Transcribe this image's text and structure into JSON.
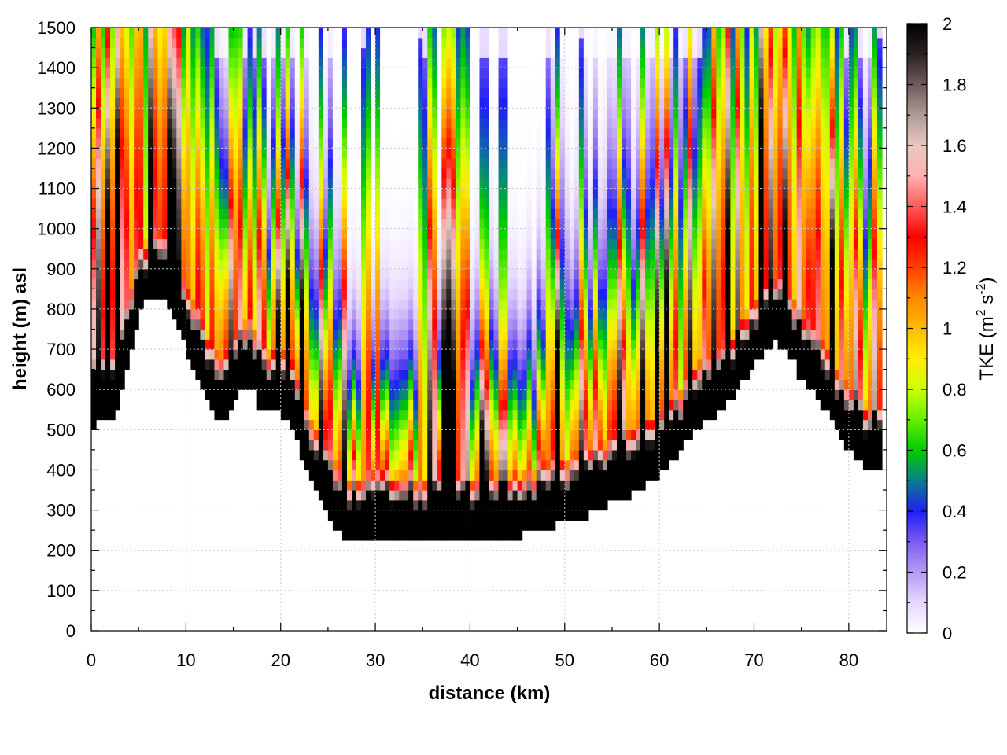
{
  "chart_data": {
    "type": "heatmap",
    "title": "",
    "xlabel": "distance (km)",
    "ylabel": "height (m) asl",
    "xlim": [
      0,
      84
    ],
    "ylim": [
      0,
      1500
    ],
    "x_ticks": [
      0,
      10,
      20,
      30,
      40,
      50,
      60,
      70,
      80
    ],
    "y_ticks": [
      0,
      100,
      200,
      300,
      400,
      500,
      600,
      700,
      800,
      900,
      1000,
      1100,
      1200,
      1300,
      1400,
      1500
    ],
    "grid": true,
    "colorbar": {
      "label_main": "TKE (m",
      "label_sup1": "2",
      "label_mid": " s",
      "label_sup2": "-2",
      "label_end": ")",
      "range": [
        0,
        2
      ],
      "ticks": [
        0,
        0.2,
        0.4,
        0.6,
        0.8,
        1,
        1.2,
        1.4,
        1.6,
        1.8,
        2
      ],
      "colors": [
        {
          "v": 0.0,
          "c": "#ffffff"
        },
        {
          "v": 0.1,
          "c": "#e6d8ff"
        },
        {
          "v": 0.2,
          "c": "#b59af5"
        },
        {
          "v": 0.3,
          "c": "#7a5cf0"
        },
        {
          "v": 0.4,
          "c": "#1f1ff5"
        },
        {
          "v": 0.5,
          "c": "#0a7d8c"
        },
        {
          "v": 0.6,
          "c": "#00cc00"
        },
        {
          "v": 0.7,
          "c": "#66ee00"
        },
        {
          "v": 0.8,
          "c": "#ccff00"
        },
        {
          "v": 0.9,
          "c": "#ffee00"
        },
        {
          "v": 1.0,
          "c": "#ffbb00"
        },
        {
          "v": 1.1,
          "c": "#ff8800"
        },
        {
          "v": 1.2,
          "c": "#ff4000"
        },
        {
          "v": 1.3,
          "c": "#ff0000"
        },
        {
          "v": 1.4,
          "c": "#ff5a5a"
        },
        {
          "v": 1.5,
          "c": "#ffb0b0"
        },
        {
          "v": 1.6,
          "c": "#e8c8c0"
        },
        {
          "v": 1.7,
          "c": "#b09a96"
        },
        {
          "v": 1.8,
          "c": "#6e5c5a"
        },
        {
          "v": 1.9,
          "c": "#2a2222"
        },
        {
          "v": 2.0,
          "c": "#000000"
        }
      ]
    },
    "terrain": {
      "x": [
        0,
        1,
        2,
        3,
        4,
        5,
        6,
        7,
        8,
        9,
        10,
        11,
        12,
        13,
        14,
        15,
        16,
        17,
        18,
        19,
        20,
        21,
        22,
        23,
        24,
        25,
        26,
        27,
        28,
        29,
        30,
        31,
        32,
        33,
        34,
        35,
        36,
        37,
        38,
        39,
        40,
        41,
        42,
        43,
        44,
        45,
        46,
        47,
        48,
        49,
        50,
        51,
        52,
        53,
        54,
        55,
        56,
        57,
        58,
        59,
        60,
        61,
        62,
        63,
        64,
        65,
        66,
        67,
        68,
        69,
        70,
        71,
        72,
        73,
        74,
        75,
        76,
        77,
        78,
        79,
        80,
        81,
        82,
        83
      ],
      "y": [
        500,
        530,
        510,
        560,
        680,
        780,
        830,
        830,
        810,
        780,
        700,
        650,
        600,
        540,
        520,
        560,
        610,
        610,
        540,
        540,
        540,
        530,
        450,
        380,
        330,
        290,
        250,
        215,
        220,
        230,
        235,
        235,
        235,
        230,
        228,
        225,
        225,
        225,
        225,
        225,
        225,
        222,
        222,
        228,
        230,
        232,
        240,
        250,
        255,
        262,
        270,
        278,
        285,
        295,
        305,
        320,
        330,
        340,
        355,
        370,
        385,
        410,
        440,
        480,
        510,
        520,
        535,
        560,
        590,
        630,
        660,
        690,
        720,
        710,
        680,
        620,
        600,
        570,
        530,
        480,
        450,
        430,
        400,
        400
      ]
    }
  }
}
